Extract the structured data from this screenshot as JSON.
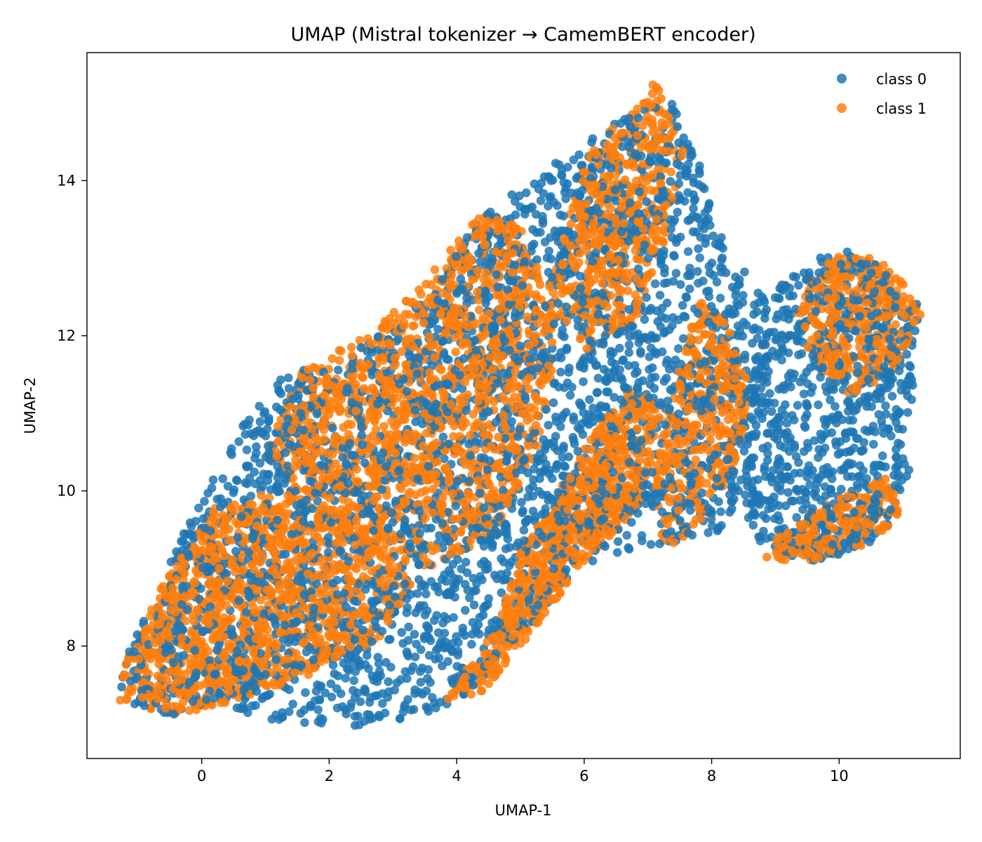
{
  "chart_data": {
    "type": "scatter",
    "title": "UMAP (Mistral tokenizer → CamemBERT encoder)",
    "xlabel": "UMAP-1",
    "ylabel": "UMAP-2",
    "xlim": [
      -1.8,
      11.9
    ],
    "ylim": [
      6.55,
      15.65
    ],
    "xticks": [
      0,
      2,
      4,
      6,
      8,
      10
    ],
    "yticks": [
      8,
      10,
      12,
      14
    ],
    "grid": false,
    "legend_position": "top-right",
    "series": [
      {
        "name": "class 0",
        "color": "#1f77b4",
        "regions": [
          {
            "kind": "polygon",
            "n": 3200,
            "points": [
              [
                -1.2,
                7.3
              ],
              [
                -0.6,
                7.1
              ],
              [
                0.5,
                7.2
              ],
              [
                1.2,
                7.0
              ],
              [
                2.5,
                6.95
              ],
              [
                3.5,
                7.1
              ],
              [
                4.2,
                7.4
              ],
              [
                5,
                8.1
              ],
              [
                5.9,
                9.0
              ],
              [
                6.5,
                9.2
              ],
              [
                7.5,
                9.3
              ],
              [
                8.2,
                9.5
              ],
              [
                8.6,
                10.2
              ],
              [
                8.8,
                11.2
              ],
              [
                8.9,
                12.4
              ],
              [
                8.4,
                13.0
              ],
              [
                8.0,
                13.6
              ],
              [
                7.8,
                14.3
              ],
              [
                7.4,
                15.0
              ],
              [
                6.9,
                15.0
              ],
              [
                6.0,
                14.5
              ],
              [
                5.0,
                13.9
              ],
              [
                4.4,
                13.6
              ],
              [
                3.6,
                12.5
              ],
              [
                2.5,
                11.9
              ],
              [
                1.3,
                11.5
              ],
              [
                0.6,
                10.8
              ],
              [
                -0.2,
                9.6
              ],
              [
                -0.8,
                8.6
              ],
              [
                -1.3,
                7.6
              ]
            ]
          },
          {
            "kind": "polygon",
            "n": 800,
            "points": [
              [
                8.6,
                9.4
              ],
              [
                9.0,
                9.2
              ],
              [
                9.6,
                9.1
              ],
              [
                10.2,
                9.2
              ],
              [
                10.8,
                9.5
              ],
              [
                11.1,
                10.2
              ],
              [
                11.1,
                10.9
              ],
              [
                11.2,
                11.5
              ],
              [
                11.25,
                12.4
              ],
              [
                10.8,
                12.8
              ],
              [
                10.2,
                13.1
              ],
              [
                9.6,
                13.0
              ],
              [
                9.0,
                12.6
              ],
              [
                8.7,
                12.0
              ],
              [
                8.6,
                11.0
              ],
              [
                8.5,
                10.0
              ]
            ]
          }
        ]
      },
      {
        "name": "class 1",
        "color": "#ff7f0e",
        "regions": [
          {
            "kind": "polygon",
            "n": 1200,
            "points": [
              [
                -1.3,
                7.3
              ],
              [
                -0.4,
                7.1
              ],
              [
                0.6,
                7.3
              ],
              [
                1.6,
                7.6
              ],
              [
                2.8,
                8.1
              ],
              [
                3.3,
                8.8
              ],
              [
                2.5,
                9.6
              ],
              [
                1.2,
                10.0
              ],
              [
                0.2,
                9.8
              ],
              [
                -0.6,
                8.8
              ],
              [
                -1.2,
                7.8
              ]
            ]
          },
          {
            "kind": "polygon",
            "n": 1400,
            "points": [
              [
                1.0,
                10.5
              ],
              [
                1.6,
                11.6
              ],
              [
                2.6,
                12.0
              ],
              [
                3.4,
                12.6
              ],
              [
                4.4,
                13.6
              ],
              [
                5.0,
                13.4
              ],
              [
                5.6,
                12.2
              ],
              [
                5.4,
                10.8
              ],
              [
                4.6,
                9.4
              ],
              [
                3.6,
                9.0
              ],
              [
                2.6,
                9.2
              ],
              [
                1.6,
                9.8
              ]
            ]
          },
          {
            "kind": "polygon",
            "n": 700,
            "points": [
              [
                3.8,
                7.3
              ],
              [
                4.6,
                8.2
              ],
              [
                5.0,
                9.2
              ],
              [
                5.6,
                10.0
              ],
              [
                6.2,
                10.8
              ],
              [
                6.8,
                11.4
              ],
              [
                7.2,
                11.0
              ],
              [
                6.9,
                9.8
              ],
              [
                6.0,
                9.1
              ],
              [
                5.2,
                8.2
              ],
              [
                4.4,
                7.4
              ]
            ]
          },
          {
            "kind": "polygon",
            "n": 500,
            "points": [
              [
                5.4,
                12.5
              ],
              [
                6.0,
                14.3
              ],
              [
                6.6,
                14.8
              ],
              [
                7.1,
                15.3
              ],
              [
                7.6,
                14.5
              ],
              [
                7.3,
                13.2
              ],
              [
                6.8,
                12.2
              ],
              [
                6.0,
                11.8
              ]
            ]
          },
          {
            "kind": "polygon",
            "n": 350,
            "points": [
              [
                7.2,
                9.2
              ],
              [
                7.9,
                9.6
              ],
              [
                8.4,
                10.4
              ],
              [
                8.6,
                11.3
              ],
              [
                8.3,
                12.1
              ],
              [
                7.8,
                12.5
              ],
              [
                7.4,
                11.4
              ],
              [
                7.1,
                10.2
              ]
            ]
          },
          {
            "kind": "polygon",
            "n": 350,
            "points": [
              [
                9.3,
                12.4
              ],
              [
                9.8,
                13.0
              ],
              [
                10.4,
                13.1
              ],
              [
                10.9,
                12.8
              ],
              [
                11.3,
                12.3
              ],
              [
                10.9,
                11.6
              ],
              [
                10.2,
                11.2
              ],
              [
                9.6,
                11.6
              ]
            ]
          },
          {
            "kind": "polygon",
            "n": 200,
            "points": [
              [
                8.8,
                9.1
              ],
              [
                9.6,
                9.1
              ],
              [
                10.4,
                9.3
              ],
              [
                11.0,
                9.7
              ],
              [
                10.8,
                10.2
              ],
              [
                10.0,
                9.9
              ],
              [
                9.2,
                9.6
              ]
            ]
          }
        ]
      }
    ]
  }
}
